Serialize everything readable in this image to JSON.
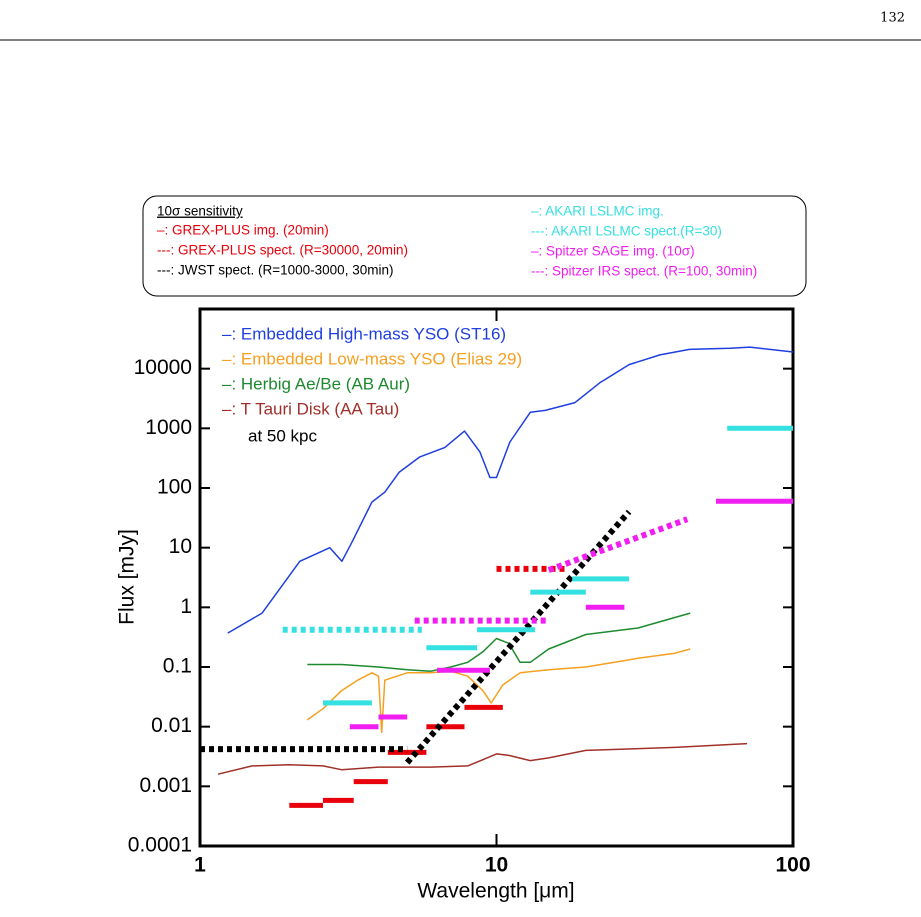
{
  "page_number": "132",
  "chart_data": {
    "type": "line",
    "xlabel": "Wavelength [μm]",
    "ylabel": "Flux [mJy]",
    "xlog": true,
    "ylog": true,
    "xlim": [
      1,
      100
    ],
    "ylim": [
      0.0001,
      100000
    ],
    "xticks": [
      1,
      10,
      100
    ],
    "yticks": [
      0.0001,
      0.001,
      0.01,
      0.1,
      1,
      10,
      100,
      1000,
      10000
    ],
    "legend_title": "10σ sensitivity",
    "annotation": "at 50 kpc",
    "series": [
      {
        "name": "–: Embedded High-mass YSO (ST16)",
        "color": "#1f3fe0",
        "style": "thin",
        "x": [
          1.24,
          1.62,
          2.17,
          2.74,
          3.01,
          3.26,
          3.8,
          4.2,
          4.7,
          5.5,
          6.7,
          7.8,
          8.8,
          9.5,
          10,
          11.1,
          13,
          14.6,
          18.4,
          22.3,
          28,
          35.6,
          44.7,
          61.3,
          71.5,
          100
        ],
        "values": [
          0.37,
          0.8,
          5.9,
          10,
          5.9,
          12.6,
          58,
          85,
          185,
          330,
          480,
          900,
          400,
          150,
          150,
          590,
          1860,
          2000,
          2700,
          5800,
          11700,
          17000,
          21000,
          22000,
          23000,
          19000
        ]
      },
      {
        "name": "–: Embedded Low-mass YSO (Elias 29)",
        "color": "#f5a020",
        "style": "thin",
        "x": [
          2.3,
          2.6,
          3.0,
          3.4,
          3.8,
          4.0,
          4.1,
          4.2,
          5,
          6,
          7,
          8,
          9,
          9.6,
          10.5,
          12,
          15,
          20,
          25,
          30,
          40,
          45
        ],
        "values": [
          0.013,
          0.02,
          0.04,
          0.06,
          0.08,
          0.07,
          0.008,
          0.06,
          0.08,
          0.08,
          0.085,
          0.07,
          0.04,
          0.025,
          0.05,
          0.08,
          0.09,
          0.1,
          0.12,
          0.14,
          0.17,
          0.2
        ]
      },
      {
        "name": "–: Herbig Ae/Be (AB Aur)",
        "color": "#1e8a2e",
        "style": "thin",
        "x": [
          2.3,
          3,
          4,
          5,
          6,
          7,
          8,
          9,
          10,
          11,
          12,
          13,
          15,
          20,
          30,
          45
        ],
        "values": [
          0.11,
          0.11,
          0.1,
          0.09,
          0.085,
          0.1,
          0.12,
          0.18,
          0.3,
          0.25,
          0.12,
          0.12,
          0.2,
          0.35,
          0.45,
          0.8
        ]
      },
      {
        "name": "–: T Tauri Disk (AA Tau)",
        "color": "#a0302a",
        "style": "thin",
        "x": [
          1.15,
          1.5,
          2,
          2.6,
          3,
          4,
          6,
          8,
          9,
          10,
          11,
          13,
          15,
          20,
          40,
          70
        ],
        "values": [
          0.0016,
          0.0022,
          0.0023,
          0.0022,
          0.0019,
          0.0021,
          0.0021,
          0.0022,
          0.0028,
          0.0035,
          0.0033,
          0.0027,
          0.003,
          0.004,
          0.0045,
          0.0052
        ]
      },
      {
        "name": "–: GREX-PLUS img. (20min)",
        "color": "#e8000b",
        "style": "bar",
        "x": [
          2.0,
          2.6,
          null,
          2.6,
          3.3,
          null,
          3.3,
          4.3,
          null,
          4.3,
          5.8,
          null,
          5.8,
          7.8,
          null,
          7.8,
          10.5
        ],
        "values": [
          0.00048,
          0.00048,
          null,
          0.00058,
          0.00058,
          null,
          0.0012,
          0.0012,
          null,
          0.0037,
          0.0037,
          null,
          0.01,
          0.01,
          null,
          0.021,
          0.021
        ]
      },
      {
        "name": "---: GREX-PLUS spect. (R=30000, 20min)",
        "color": "#e8000b",
        "style": "dotted",
        "x": [
          10,
          17
        ],
        "values": [
          4.4,
          4.4
        ]
      },
      {
        "name": "---: JWST spect. (R=1000-3000, 30min)",
        "color": "#000000",
        "style": "dotted",
        "x": [
          1,
          5,
          null,
          5,
          28
        ],
        "values": [
          0.0042,
          0.0042,
          null,
          0.0025,
          40
        ]
      },
      {
        "name": "–: AKARI LSLMC img.",
        "color": "#35e0e0",
        "style": "bar",
        "x": [
          2.6,
          3.8,
          null,
          5.8,
          8.6,
          null,
          8.6,
          13.5,
          null,
          13,
          20,
          null,
          18,
          28,
          null,
          60,
          100
        ],
        "values": [
          0.025,
          0.025,
          null,
          0.21,
          0.21,
          null,
          0.42,
          0.42,
          null,
          1.8,
          1.8,
          null,
          3,
          3,
          null,
          1000,
          1000
        ]
      },
      {
        "name": "---: AKARI LSLMC spect.(R=30)",
        "color": "#35e0e0",
        "style": "dotted",
        "x": [
          1.9,
          5.6
        ],
        "values": [
          0.42,
          0.42
        ]
      },
      {
        "name": "–: Spitzer SAGE img. (10σ)",
        "color": "#f01ef0",
        "style": "bar",
        "x": [
          3.2,
          4.0,
          null,
          4.0,
          5.0,
          null,
          6.3,
          9.5,
          null,
          20,
          27,
          null,
          55,
          100
        ],
        "values": [
          0.01,
          0.01,
          null,
          0.0145,
          0.0145,
          null,
          0.088,
          0.088,
          null,
          1,
          1,
          null,
          60,
          60
        ]
      },
      {
        "name": "---: Spitzer IRS spect. (R=100, 30min)",
        "color": "#f01ef0",
        "style": "dotted",
        "x": [
          5.3,
          15,
          null,
          15,
          44
        ],
        "values": [
          0.6,
          0.6,
          null,
          4.2,
          30
        ]
      }
    ]
  }
}
